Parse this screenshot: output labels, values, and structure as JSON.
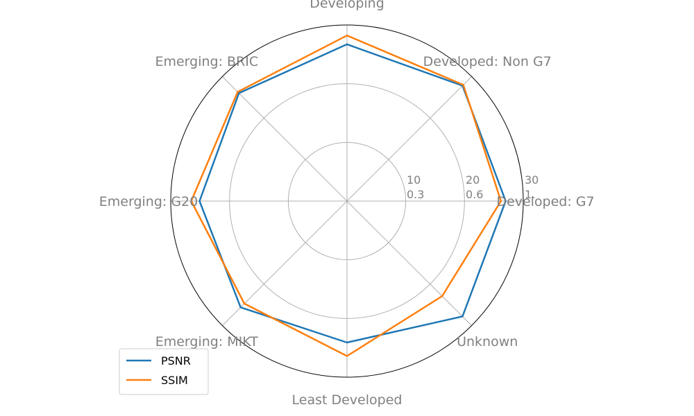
{
  "chart_data": {
    "type": "radar",
    "categories": [
      "Developed: G7",
      "Developed: Non G7",
      "Developing",
      "Emerging: BRIC",
      "Emerging: G20",
      "Emerging: MIKT",
      "Least Developed",
      "Unknown"
    ],
    "rgrid": {
      "outer_ticks": [
        "10",
        "20",
        "30"
      ],
      "inner_ticks": [
        "0.3",
        "0.6",
        "1."
      ],
      "max": 30
    },
    "series": [
      {
        "name": "PSNR",
        "color": "#1f77b4",
        "values": [
          27.0,
          27.8,
          26.7,
          26.0,
          25.1,
          25.6,
          24.1,
          27.8
        ]
      },
      {
        "name": "SSIM",
        "color": "#ff7f0e",
        "values": [
          26.2,
          28.0,
          28.2,
          26.3,
          26.5,
          24.7,
          26.4,
          22.9
        ]
      }
    ],
    "legend": {
      "location": "lower-left",
      "entries": [
        "PSNR",
        "SSIM"
      ]
    },
    "grid": true
  }
}
